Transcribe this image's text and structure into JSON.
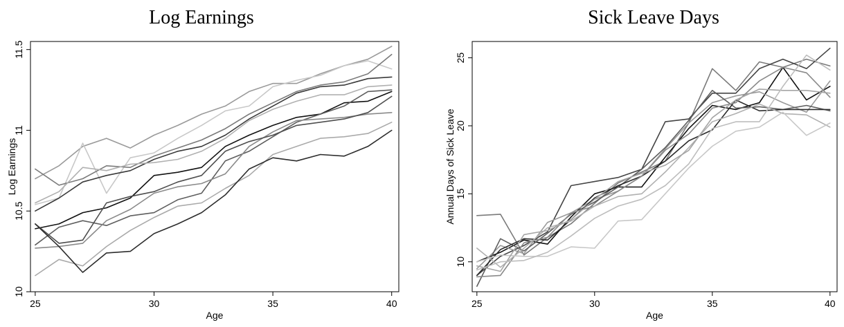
{
  "chart_data": [
    {
      "type": "line",
      "title": "Log Earnings",
      "xlabel": "Age",
      "ylabel": "Log Earnings",
      "xlim": [
        25,
        40
      ],
      "ylim": [
        10,
        11.55
      ],
      "xticks": [
        25,
        30,
        35,
        40
      ],
      "xtick_labels": [
        "25",
        "30",
        "35",
        "40"
      ],
      "yticks": [
        10,
        10.5,
        11,
        11.5
      ],
      "ytick_labels": [
        "10",
        "10.5",
        "11",
        "11.5"
      ],
      "grid": false,
      "x": [
        25,
        26,
        27,
        28,
        29,
        30,
        31,
        32,
        33,
        34,
        35,
        36,
        37,
        38,
        39,
        40
      ],
      "series": [
        {
          "color": "#9a9a9a",
          "values": [
            10.7,
            10.78,
            10.9,
            10.95,
            10.89,
            10.97,
            11.03,
            11.1,
            11.15,
            11.24,
            11.29,
            11.29,
            11.35,
            11.4,
            11.44,
            11.52
          ]
        },
        {
          "color": "#c8c8c8",
          "values": [
            10.54,
            10.58,
            10.92,
            10.61,
            10.83,
            10.86,
            10.95,
            11.03,
            11.12,
            11.15,
            11.27,
            11.31,
            11.34,
            11.4,
            11.43,
            11.38
          ]
        },
        {
          "color": "#7a7a7a",
          "values": [
            10.76,
            10.66,
            10.7,
            10.78,
            10.77,
            10.84,
            10.89,
            10.94,
            11.01,
            11.1,
            11.17,
            11.24,
            11.28,
            11.3,
            11.35,
            11.47
          ]
        },
        {
          "color": "#3a3a3a",
          "values": [
            10.5,
            10.58,
            10.68,
            10.72,
            10.75,
            10.82,
            10.87,
            10.9,
            10.97,
            11.07,
            11.15,
            11.23,
            11.27,
            11.28,
            11.32,
            11.33
          ]
        },
        {
          "color": "#b0b0b0",
          "values": [
            10.55,
            10.62,
            10.77,
            10.75,
            10.79,
            10.8,
            10.82,
            10.87,
            10.95,
            11.06,
            11.13,
            11.18,
            11.22,
            11.22,
            11.27,
            11.28
          ]
        },
        {
          "color": "#111111",
          "values": [
            10.39,
            10.42,
            10.49,
            10.52,
            10.58,
            10.72,
            10.74,
            10.77,
            10.9,
            10.97,
            11.03,
            11.08,
            11.1,
            11.17,
            11.18,
            11.24
          ]
        },
        {
          "color": "#5e5e5e",
          "values": [
            10.29,
            10.4,
            10.44,
            10.41,
            10.47,
            10.49,
            10.57,
            10.61,
            10.81,
            10.87,
            10.96,
            11.05,
            11.1,
            11.15,
            11.24,
            11.25
          ]
        },
        {
          "color": "#8a8a8a",
          "values": [
            10.27,
            10.28,
            10.3,
            10.44,
            10.51,
            10.61,
            10.65,
            10.67,
            10.73,
            10.9,
            10.99,
            11.06,
            11.07,
            11.08,
            11.1,
            11.11
          ]
        },
        {
          "color": "#4e4e4e",
          "values": [
            10.42,
            10.3,
            10.32,
            10.55,
            10.59,
            10.62,
            10.68,
            10.72,
            10.87,
            10.93,
            10.97,
            11.03,
            11.05,
            11.07,
            11.11,
            11.21
          ]
        },
        {
          "color": "#aaaaaa",
          "values": [
            10.1,
            10.2,
            10.16,
            10.28,
            10.38,
            10.46,
            10.53,
            10.55,
            10.64,
            10.72,
            10.85,
            10.9,
            10.95,
            10.96,
            10.98,
            11.05
          ]
        },
        {
          "color": "#2c2c2c",
          "values": [
            10.42,
            10.28,
            10.12,
            10.24,
            10.25,
            10.36,
            10.42,
            10.49,
            10.6,
            10.76,
            10.83,
            10.81,
            10.85,
            10.84,
            10.9,
            11.0
          ]
        }
      ]
    },
    {
      "type": "line",
      "title": "Sick Leave Days",
      "xlabel": "Age",
      "ylabel": "Annual Days of Sick Leave",
      "xlim": [
        25,
        40
      ],
      "ylim": [
        7.8,
        26.2
      ],
      "xticks": [
        25,
        30,
        35,
        40
      ],
      "xtick_labels": [
        "25",
        "30",
        "35",
        "40"
      ],
      "yticks": [
        10,
        15,
        20,
        25
      ],
      "ytick_labels": [
        "10",
        "15",
        "20",
        "25"
      ],
      "grid": false,
      "x": [
        25,
        26,
        27,
        28,
        29,
        30,
        31,
        32,
        33,
        34,
        35,
        36,
        37,
        38,
        39,
        40
      ],
      "series": [
        {
          "color": "#7a7a7a",
          "values": [
            13.4,
            13.5,
            10.5,
            11.8,
            12.8,
            14.3,
            15.8,
            16.6,
            17.4,
            20.2,
            24.2,
            22.6,
            24.7,
            24.3,
            24.9,
            24.4
          ]
        },
        {
          "color": "#444444",
          "values": [
            9.0,
            10.4,
            11.2,
            12.2,
            15.6,
            15.9,
            16.2,
            16.8,
            20.3,
            20.5,
            22.4,
            22.4,
            24.2,
            24.9,
            24.2,
            25.7
          ]
        },
        {
          "color": "#111111",
          "values": [
            10.0,
            10.7,
            11.6,
            11.3,
            13.3,
            15.0,
            15.5,
            15.5,
            17.7,
            19.8,
            21.5,
            21.2,
            21.7,
            24.3,
            21.9,
            22.9
          ]
        },
        {
          "color": "#9a9a9a",
          "values": [
            9.5,
            11.2,
            10.6,
            12.9,
            13.6,
            14.6,
            15.2,
            16.3,
            18.3,
            20.2,
            21.7,
            22.2,
            22.5,
            21.7,
            21.0,
            23.3
          ]
        },
        {
          "color": "#5e5e5e",
          "values": [
            8.2,
            11.7,
            10.8,
            12.1,
            13.5,
            14.4,
            15.5,
            16.8,
            18.4,
            20.4,
            22.6,
            21.3,
            21.4,
            21.2,
            21.5,
            21.1
          ]
        },
        {
          "color": "#2c2c2c",
          "values": [
            9.0,
            10.9,
            11.7,
            11.6,
            13.1,
            14.7,
            15.6,
            16.3,
            17.4,
            18.9,
            19.7,
            21.9,
            21.1,
            21.2,
            21.2,
            21.2
          ]
        },
        {
          "color": "#8a8a8a",
          "values": [
            8.9,
            9.0,
            11.4,
            11.8,
            13.6,
            14.1,
            15.2,
            16.3,
            18.2,
            19.4,
            21.3,
            21.7,
            23.3,
            24.3,
            23.9,
            22.1
          ]
        },
        {
          "color": "#b0b0b0",
          "values": [
            11.0,
            9.6,
            11.0,
            12.5,
            13.0,
            14.1,
            14.8,
            15.0,
            16.6,
            18.4,
            20.3,
            20.9,
            21.6,
            20.9,
            20.8,
            19.9
          ]
        },
        {
          "color": "#c8c8c8",
          "values": [
            10.0,
            10.5,
            10.4,
            10.4,
            11.1,
            11.0,
            13.0,
            13.1,
            15.0,
            16.9,
            18.5,
            19.6,
            19.9,
            21.0,
            19.3,
            20.2
          ]
        },
        {
          "color": "#a5a5a5",
          "values": [
            9.7,
            9.3,
            12.0,
            12.3,
            13.1,
            14.6,
            15.9,
            16.5,
            17.1,
            18.2,
            20.6,
            21.9,
            22.7,
            22.6,
            22.6,
            22.4
          ]
        },
        {
          "color": "#bdbdbd",
          "values": [
            9.4,
            10.0,
            10.1,
            10.7,
            11.9,
            13.2,
            14.1,
            14.6,
            15.6,
            17.2,
            19.8,
            20.3,
            20.3,
            22.9,
            25.2,
            24.1
          ]
        }
      ]
    }
  ]
}
